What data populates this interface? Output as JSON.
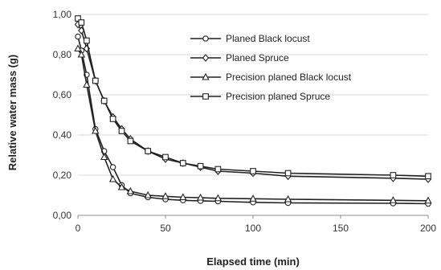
{
  "chart_data": {
    "type": "line",
    "title": "",
    "xlabel": "Elapsed time (min)",
    "ylabel": "Relative water mass (g)",
    "xlim": [
      0,
      200
    ],
    "ylim": [
      0,
      1
    ],
    "x_ticks": [
      0,
      50,
      100,
      150,
      200
    ],
    "x_tick_labels": [
      "0",
      "50",
      "100",
      "150",
      "200"
    ],
    "y_ticks": [
      0,
      0.2,
      0.4,
      0.6,
      0.8,
      1.0
    ],
    "y_tick_labels": [
      "0,00",
      "0,20",
      "0,40",
      "0,60",
      "0,80",
      "1,00"
    ],
    "grid": "horizontal",
    "legend_position": "top-right",
    "series": [
      {
        "name": "Planed Black locust",
        "marker": "circle",
        "x": [
          0,
          2,
          5,
          10,
          15,
          20,
          25,
          30,
          40,
          50,
          60,
          70,
          80,
          100,
          120,
          180,
          200
        ],
        "y": [
          0.89,
          0.82,
          0.7,
          0.43,
          0.32,
          0.24,
          0.15,
          0.11,
          0.09,
          0.08,
          0.075,
          0.072,
          0.07,
          0.065,
          0.062,
          0.06,
          0.058
        ]
      },
      {
        "name": "Planed Spruce",
        "marker": "diamond",
        "x": [
          0,
          2,
          5,
          10,
          15,
          20,
          25,
          30,
          40,
          50,
          60,
          70,
          80,
          100,
          120,
          180,
          200
        ],
        "y": [
          0.95,
          0.92,
          0.83,
          0.67,
          0.57,
          0.49,
          0.43,
          0.38,
          0.32,
          0.28,
          0.26,
          0.24,
          0.22,
          0.21,
          0.195,
          0.185,
          0.18
        ]
      },
      {
        "name": "Precision planed Black locust",
        "marker": "triangle",
        "x": [
          0,
          2,
          5,
          10,
          15,
          20,
          25,
          30,
          40,
          50,
          60,
          70,
          80,
          100,
          120,
          180,
          200
        ],
        "y": [
          0.83,
          0.8,
          0.65,
          0.42,
          0.29,
          0.18,
          0.14,
          0.12,
          0.1,
          0.095,
          0.09,
          0.088,
          0.085,
          0.083,
          0.08,
          0.075,
          0.073
        ]
      },
      {
        "name": "Precision planed Spruce",
        "marker": "square",
        "x": [
          0,
          2,
          5,
          10,
          15,
          20,
          25,
          30,
          40,
          50,
          60,
          70,
          80,
          100,
          120,
          180,
          200
        ],
        "y": [
          0.98,
          0.96,
          0.87,
          0.67,
          0.57,
          0.48,
          0.42,
          0.37,
          0.32,
          0.29,
          0.26,
          0.245,
          0.23,
          0.22,
          0.21,
          0.2,
          0.195
        ]
      }
    ]
  }
}
